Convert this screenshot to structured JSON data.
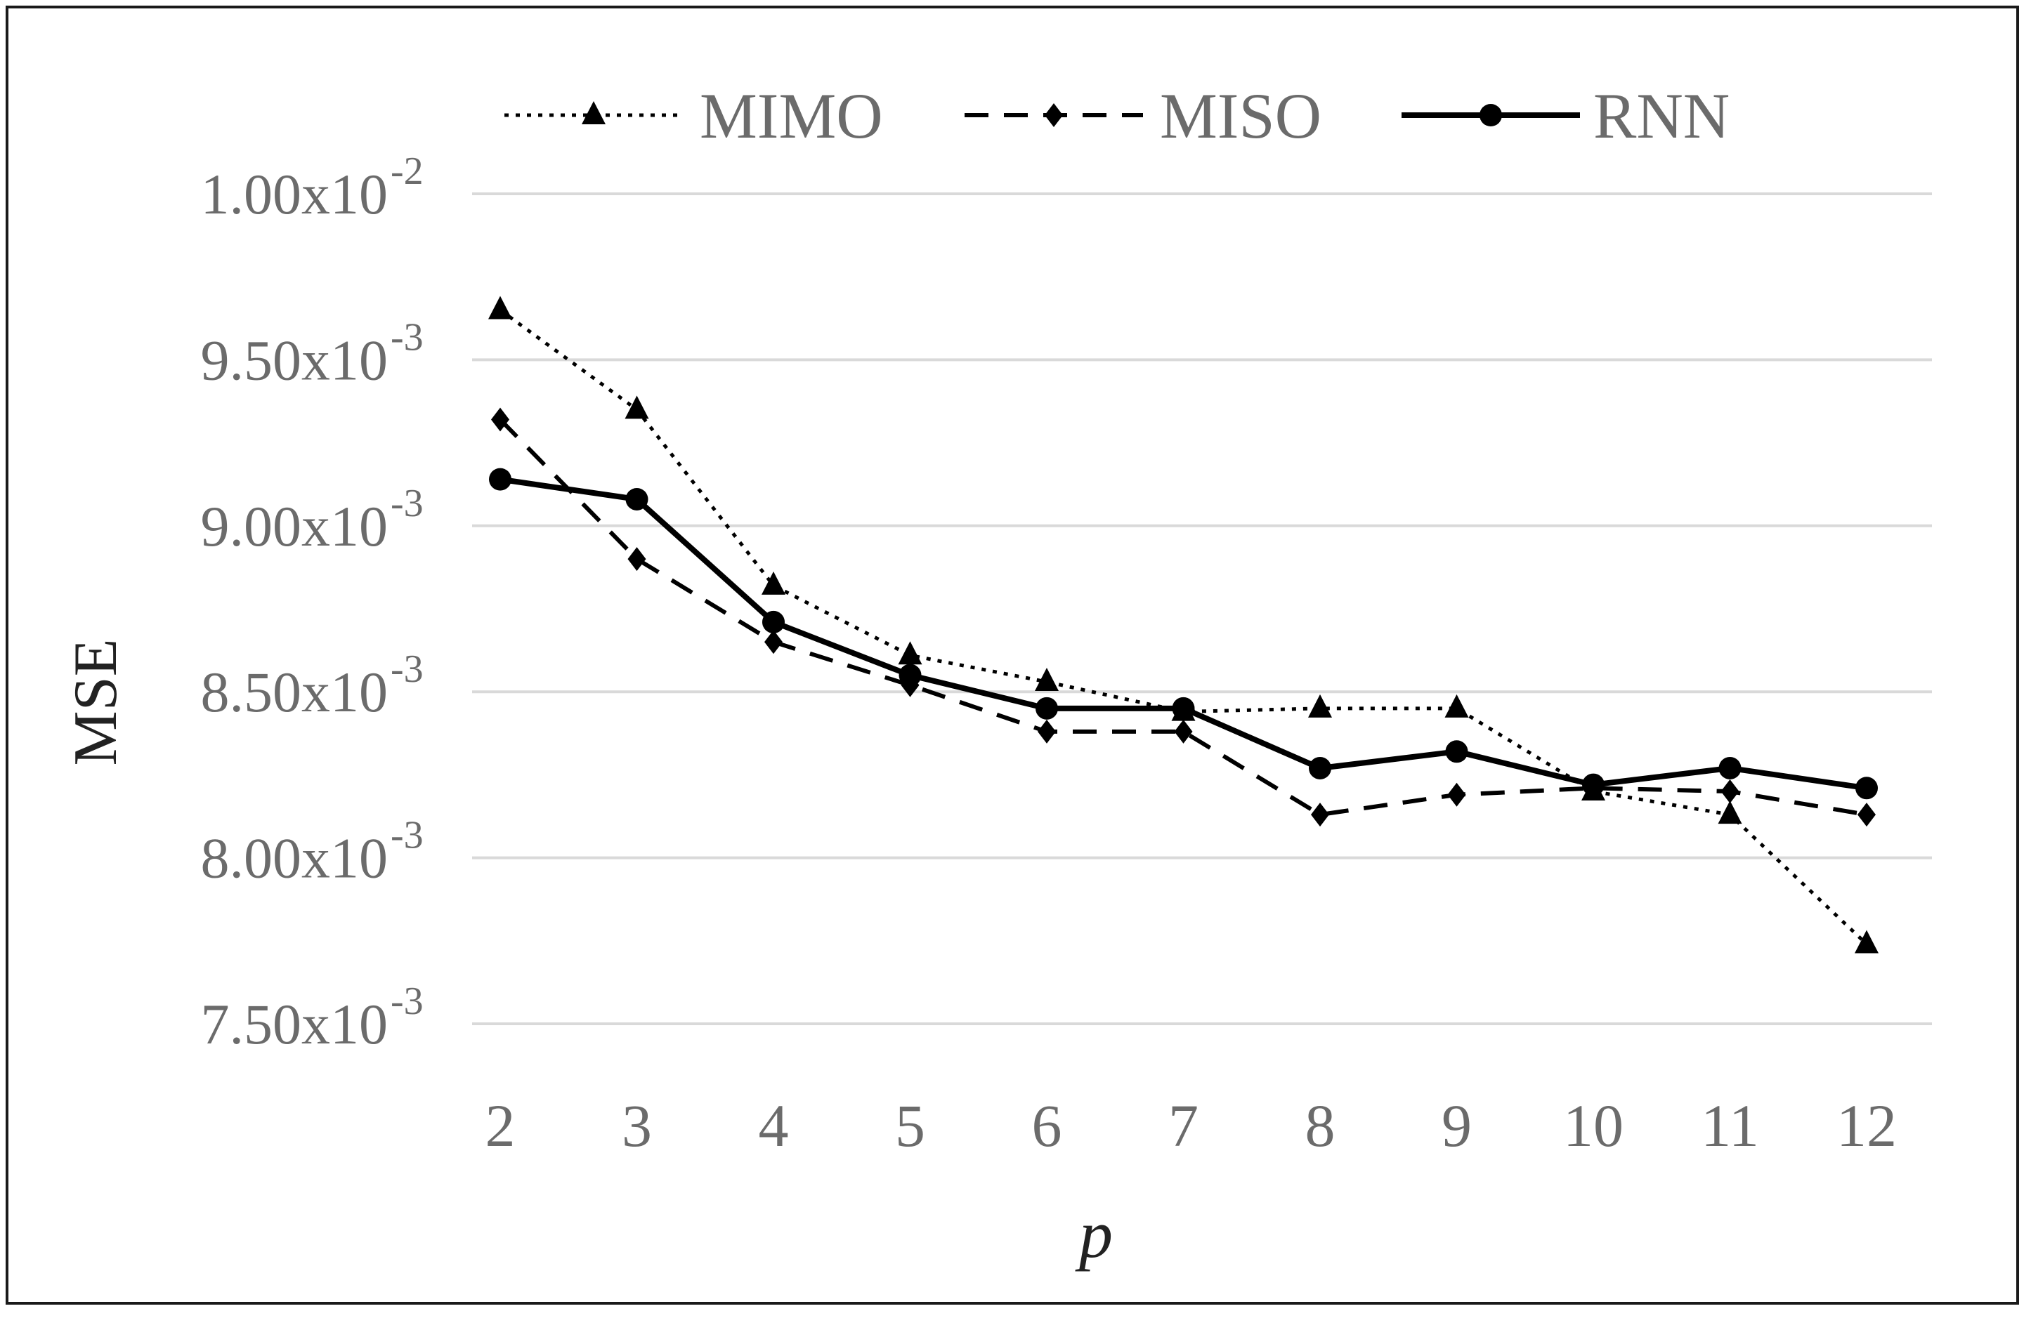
{
  "chart_data": {
    "type": "line",
    "title": "",
    "xlabel": "p",
    "ylabel": "MSE",
    "x": [
      2,
      3,
      4,
      5,
      6,
      7,
      8,
      9,
      10,
      11,
      12
    ],
    "ylim": [
      0.0075,
      0.01
    ],
    "yticks": [
      {
        "value": 0.01,
        "mantissa": "1.00x10",
        "exp": "-2"
      },
      {
        "value": 0.0095,
        "mantissa": "9.50x10",
        "exp": "-3"
      },
      {
        "value": 0.009,
        "mantissa": "9.00x10",
        "exp": "-3"
      },
      {
        "value": 0.0085,
        "mantissa": "8.50x10",
        "exp": "-3"
      },
      {
        "value": 0.008,
        "mantissa": "8.00x10",
        "exp": "-3"
      },
      {
        "value": 0.0075,
        "mantissa": "7.50x10",
        "exp": "-3"
      }
    ],
    "grid": true,
    "legend_position": "top",
    "series": [
      {
        "name": "MIMO",
        "marker": "triangle",
        "dash": "dotted",
        "values": [
          0.00965,
          0.00935,
          0.00882,
          0.00861,
          0.00853,
          0.00844,
          0.00845,
          0.00845,
          0.0082,
          0.00813,
          0.00774
        ]
      },
      {
        "name": "MISO",
        "marker": "diamond",
        "dash": "dashed",
        "values": [
          0.00932,
          0.0089,
          0.00865,
          0.00852,
          0.00838,
          0.00838,
          0.00813,
          0.00819,
          0.00821,
          0.0082,
          0.00813
        ]
      },
      {
        "name": "RNN",
        "marker": "circle",
        "dash": "solid",
        "values": [
          0.00914,
          0.00908,
          0.00871,
          0.00855,
          0.00845,
          0.00845,
          0.00827,
          0.00832,
          0.00822,
          0.00827,
          0.00821
        ]
      }
    ]
  }
}
